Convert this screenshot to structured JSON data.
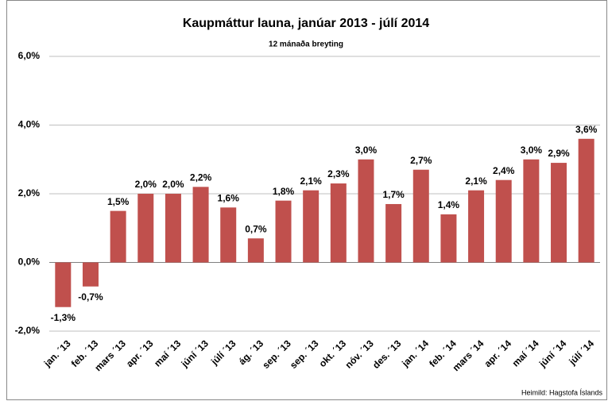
{
  "chart_data": {
    "type": "bar",
    "title": "Kaupmáttur launa, janúar 2013 - júlí 2014",
    "subtitle": "12 mánaða breyting",
    "source": "Heimild: Hagstofa Íslands",
    "categories": [
      "jan. ´13",
      "feb. ´13",
      "mars ´13",
      "apr. ´13",
      "maí ´13",
      "júní ´13",
      "júlí ´13",
      "ág. ´13",
      "sep. ´13",
      "sep. ´13",
      "okt. ´13",
      "nóv. ´13",
      "des. ´13",
      "jan. ´14",
      "feb. ´14",
      "mars ´14",
      "apr. ´14",
      "maí ´14",
      "júní ´14",
      "júlí ´14"
    ],
    "values": [
      -1.3,
      -0.7,
      1.5,
      2.0,
      2.0,
      2.2,
      1.6,
      0.7,
      1.8,
      2.1,
      2.3,
      3.0,
      1.7,
      2.7,
      1.4,
      2.1,
      2.4,
      3.0,
      2.9,
      3.6
    ],
    "value_labels": [
      "-1,3%",
      "-0,7%",
      "1,5%",
      "2,0%",
      "2,0%",
      "2,2%",
      "1,6%",
      "0,7%",
      "1,8%",
      "2,1%",
      "2,3%",
      "3,0%",
      "1,7%",
      "2,7%",
      "1,4%",
      "2,1%",
      "2,4%",
      "3,0%",
      "2,9%",
      "3,6%"
    ],
    "color": "#c0504d",
    "ylim": [
      -2,
      6
    ],
    "yticks": [
      {
        "value": -2,
        "label": "-2,0%"
      },
      {
        "value": 0,
        "label": "0,0%"
      },
      {
        "value": 2,
        "label": "2,0%"
      },
      {
        "value": 4,
        "label": "4,0%"
      },
      {
        "value": 6,
        "label": "6,0%"
      }
    ],
    "grid": true
  }
}
